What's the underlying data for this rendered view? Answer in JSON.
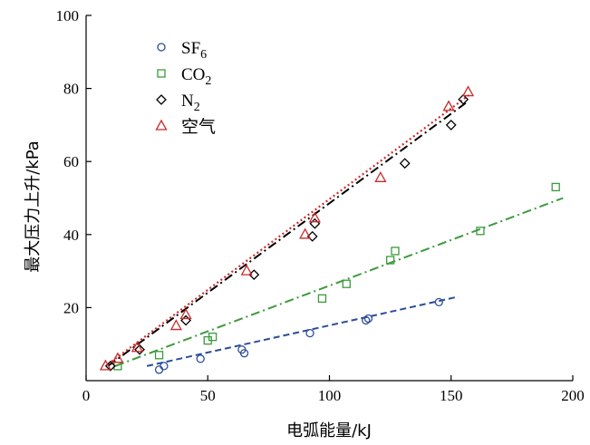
{
  "chart_data": {
    "type": "scatter",
    "xlabel": "电弧能量/kJ",
    "ylabel": "最大压力上升/kPa",
    "xlim": [
      0,
      200
    ],
    "ylim": [
      0,
      100
    ],
    "xticks": [
      0,
      50,
      100,
      150,
      200
    ],
    "yticks": [
      20,
      40,
      60,
      80,
      100
    ],
    "grid": false,
    "legend_position": "top-left",
    "series": [
      {
        "name": "SF6",
        "legend_base": "SF",
        "legend_sub": "6",
        "marker": "circle",
        "color": "#2c4d99",
        "points": [
          [
            30,
            3
          ],
          [
            32,
            4
          ],
          [
            47,
            6
          ],
          [
            64,
            8.5
          ],
          [
            65,
            7.5
          ],
          [
            92,
            13
          ],
          [
            115,
            16.5
          ],
          [
            116,
            17
          ],
          [
            145,
            21.5
          ]
        ],
        "fit": {
          "x": [
            25,
            153
          ],
          "y": [
            4,
            23
          ],
          "dash": "dashed"
        }
      },
      {
        "name": "CO2",
        "legend_base": "CO",
        "legend_sub": "2",
        "marker": "square",
        "color": "#3c9a3c",
        "points": [
          [
            13,
            4
          ],
          [
            30,
            7
          ],
          [
            50,
            11
          ],
          [
            52,
            12
          ],
          [
            97,
            22.5
          ],
          [
            107,
            26.5
          ],
          [
            125,
            33
          ],
          [
            127,
            35.5
          ],
          [
            162,
            41
          ],
          [
            193,
            53
          ]
        ],
        "fit": {
          "x": [
            12,
            196
          ],
          "y": [
            4,
            50
          ],
          "dash": "dashdot"
        }
      },
      {
        "name": "N2",
        "legend_base": "N",
        "legend_sub": "2",
        "marker": "diamond",
        "color": "#000000",
        "points": [
          [
            10,
            4
          ],
          [
            22,
            8.5
          ],
          [
            41,
            16.5
          ],
          [
            69,
            29
          ],
          [
            93,
            39.5
          ],
          [
            94,
            43
          ],
          [
            131,
            59.5
          ],
          [
            150,
            70
          ],
          [
            155,
            77
          ]
        ],
        "fit": {
          "x": [
            9,
            157
          ],
          "y": [
            4,
            76.5
          ],
          "dash": "dashdot"
        }
      },
      {
        "name": "空气",
        "legend_base": "空气",
        "legend_sub": "",
        "marker": "triangle",
        "color": "#cc2a2a",
        "points": [
          [
            8,
            4
          ],
          [
            13,
            6
          ],
          [
            21,
            9
          ],
          [
            37,
            15
          ],
          [
            41,
            18
          ],
          [
            66,
            30
          ],
          [
            90,
            40
          ],
          [
            94,
            44.5
          ],
          [
            121,
            55.5
          ],
          [
            149,
            75
          ],
          [
            157,
            79
          ]
        ],
        "fit": {
          "x": [
            9,
            158
          ],
          "y": [
            4.5,
            78.5
          ],
          "dash": "dotted"
        }
      }
    ]
  }
}
